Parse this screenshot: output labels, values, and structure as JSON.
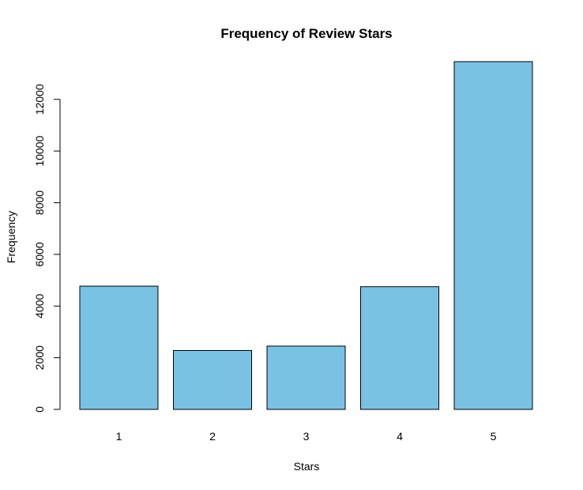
{
  "chart_data": {
    "type": "bar",
    "title": "Frequency of Review Stars",
    "xlabel": "Stars",
    "ylabel": "Frequency",
    "categories": [
      "1",
      "2",
      "3",
      "4",
      "5"
    ],
    "values": [
      4770,
      2280,
      2450,
      4750,
      13460
    ],
    "yticks": [
      0,
      2000,
      4000,
      6000,
      8000,
      10000,
      12000
    ],
    "ylim": [
      0,
      13460
    ],
    "bar_color": "#7ac2e4",
    "grid": false,
    "legend": "none"
  }
}
